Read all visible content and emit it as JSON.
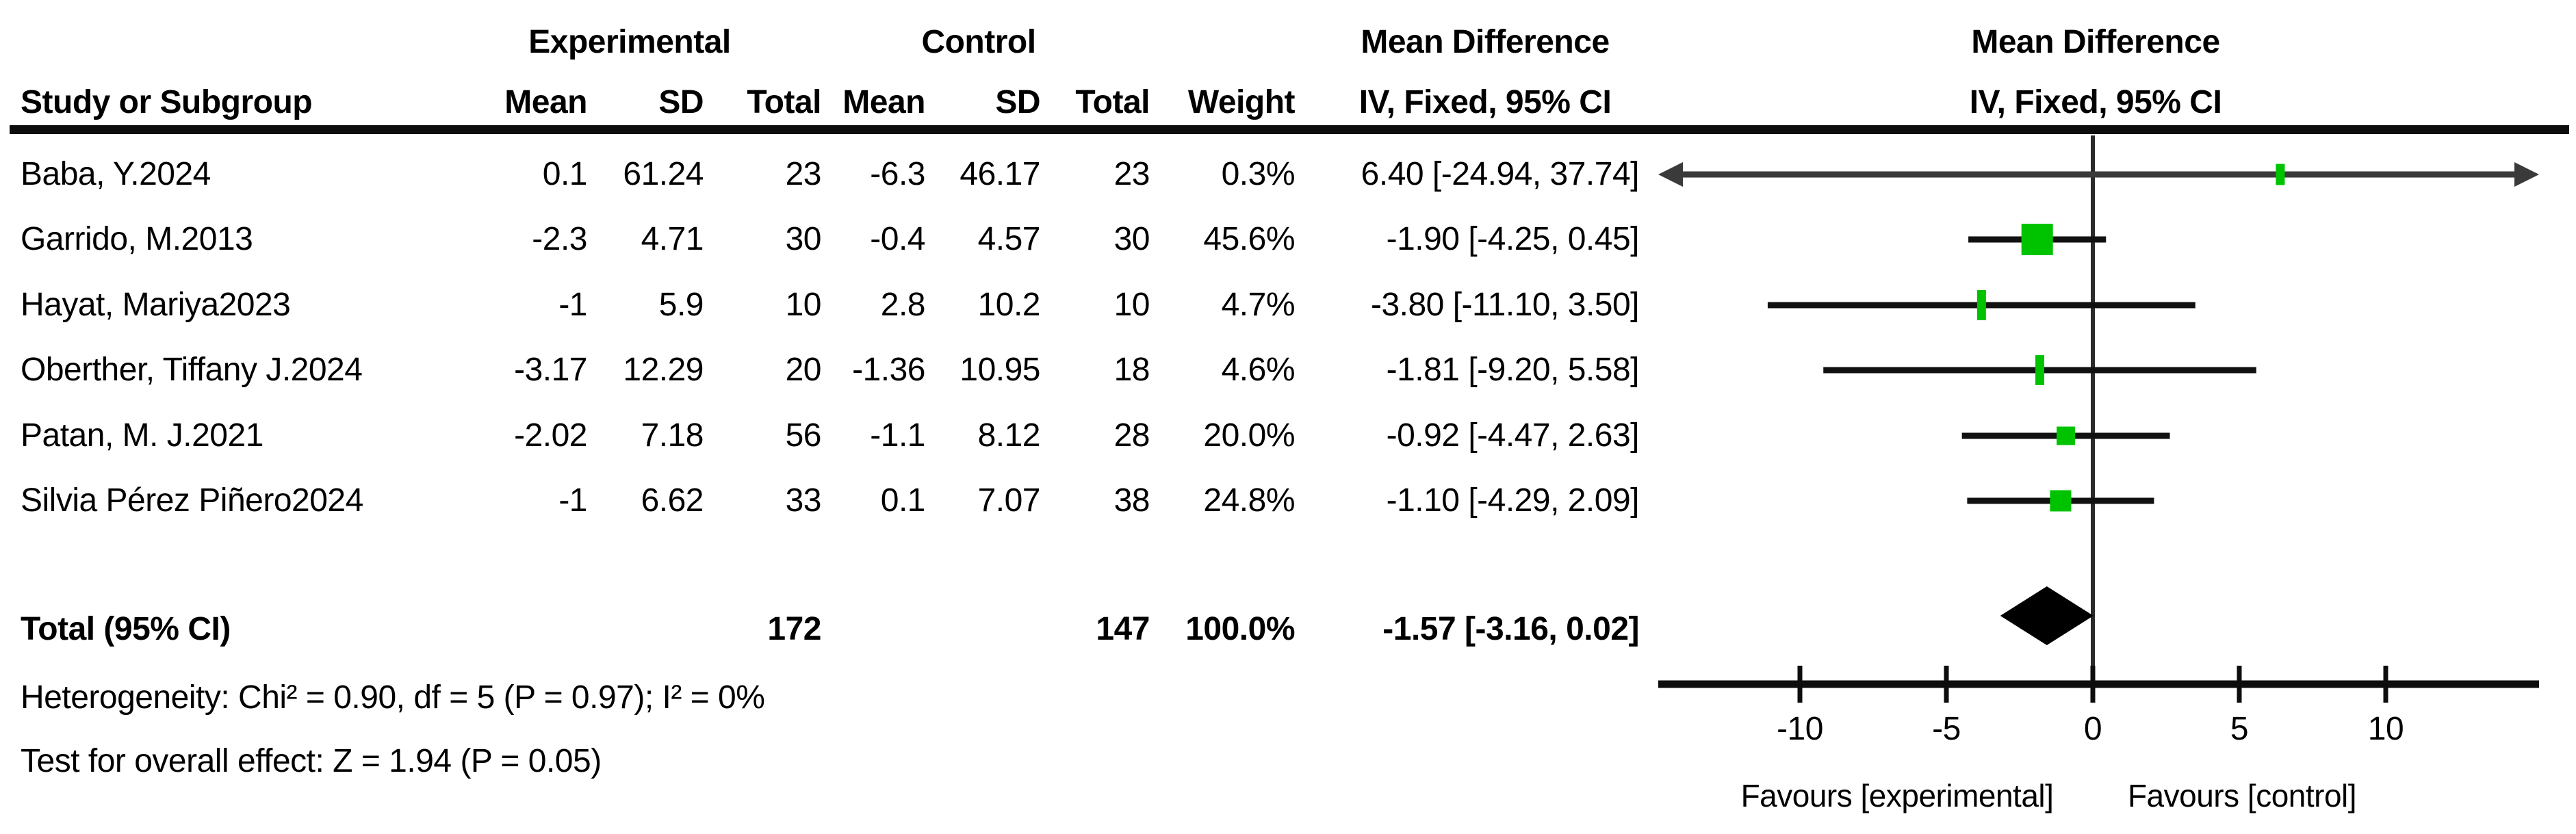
{
  "chart_data": {
    "type": "forest_plot",
    "effect_measure": "Mean Difference, IV, Fixed, 95% CI",
    "group_headers": {
      "experimental": "Experimental",
      "control": "Control",
      "md_table": "Mean Difference",
      "md_plot": "Mean Difference"
    },
    "subheaders": {
      "study": "Study or Subgroup",
      "mean": "Mean",
      "sd": "SD",
      "total": "Total",
      "weight": "Weight",
      "iv_table": "IV, Fixed, 95% CI",
      "iv_plot": "IV, Fixed, 95% CI"
    },
    "studies": [
      {
        "name": "Baba, Y.2024",
        "mean_exp": "0.1",
        "sd_exp": "61.24",
        "total_exp": "23",
        "mean_ctrl": "-6.3",
        "sd_ctrl": "46.17",
        "total_ctrl": "23",
        "weight_label": "0.3%",
        "weight_pct": 0.3,
        "ci_label": "6.40 [-24.94, 37.74]",
        "effect": 6.4,
        "ci_low": -24.94,
        "ci_high": 37.74
      },
      {
        "name": "Garrido, M.2013",
        "mean_exp": "-2.3",
        "sd_exp": "4.71",
        "total_exp": "30",
        "mean_ctrl": "-0.4",
        "sd_ctrl": "4.57",
        "total_ctrl": "30",
        "weight_label": "45.6%",
        "weight_pct": 45.6,
        "ci_label": "-1.90 [-4.25, 0.45]",
        "effect": -1.9,
        "ci_low": -4.25,
        "ci_high": 0.45
      },
      {
        "name": "Hayat, Mariya2023",
        "mean_exp": "-1",
        "sd_exp": "5.9",
        "total_exp": "10",
        "mean_ctrl": "2.8",
        "sd_ctrl": "10.2",
        "total_ctrl": "10",
        "weight_label": "4.7%",
        "weight_pct": 4.7,
        "ci_label": "-3.80 [-11.10, 3.50]",
        "effect": -3.8,
        "ci_low": -11.1,
        "ci_high": 3.5
      },
      {
        "name": "Oberther, Tiffany J.2024",
        "mean_exp": "-3.17",
        "sd_exp": "12.29",
        "total_exp": "20",
        "mean_ctrl": "-1.36",
        "sd_ctrl": "10.95",
        "total_ctrl": "18",
        "weight_label": "4.6%",
        "weight_pct": 4.6,
        "ci_label": "-1.81 [-9.20, 5.58]",
        "effect": -1.81,
        "ci_low": -9.2,
        "ci_high": 5.58
      },
      {
        "name": "Patan, M. J.2021",
        "mean_exp": "-2.02",
        "sd_exp": "7.18",
        "total_exp": "56",
        "mean_ctrl": "-1.1",
        "sd_ctrl": "8.12",
        "total_ctrl": "28",
        "weight_label": "20.0%",
        "weight_pct": 20.0,
        "ci_label": "-0.92 [-4.47, 2.63]",
        "effect": -0.92,
        "ci_low": -4.47,
        "ci_high": 2.63
      },
      {
        "name": "Silvia Pérez Piñero2024",
        "mean_exp": "-1",
        "sd_exp": "6.62",
        "total_exp": "33",
        "mean_ctrl": "0.1",
        "sd_ctrl": "7.07",
        "total_ctrl": "38",
        "weight_label": "24.8%",
        "weight_pct": 24.8,
        "ci_label": "-1.10 [-4.29, 2.09]",
        "effect": -1.1,
        "ci_low": -4.29,
        "ci_high": 2.09
      }
    ],
    "total": {
      "label": "Total (95% CI)",
      "total_exp": "172",
      "total_ctrl": "147",
      "weight_label": "100.0%",
      "ci_label": "-1.57 [-3.16, 0.02]",
      "effect": -1.57,
      "ci_low": -3.16,
      "ci_high": 0.02
    },
    "heterogeneity": "Heterogeneity: Chi² = 0.90, df = 5 (P = 0.97); I² = 0%",
    "overall_effect": "Test for overall effect: Z = 1.94 (P = 0.05)",
    "axis": {
      "ticks": [
        -10,
        -5,
        0,
        5,
        10
      ],
      "visible_range": [
        -14.8,
        15.2
      ],
      "favours_left": "Favours [experimental]",
      "favours_right": "Favours [control]"
    },
    "colors": {
      "marker_green": "#00c300",
      "diamond_black": "#000000",
      "ci_line": "#111111",
      "clipped_line": "#3a3a3a",
      "axis_black": "#0d0d0d"
    }
  }
}
